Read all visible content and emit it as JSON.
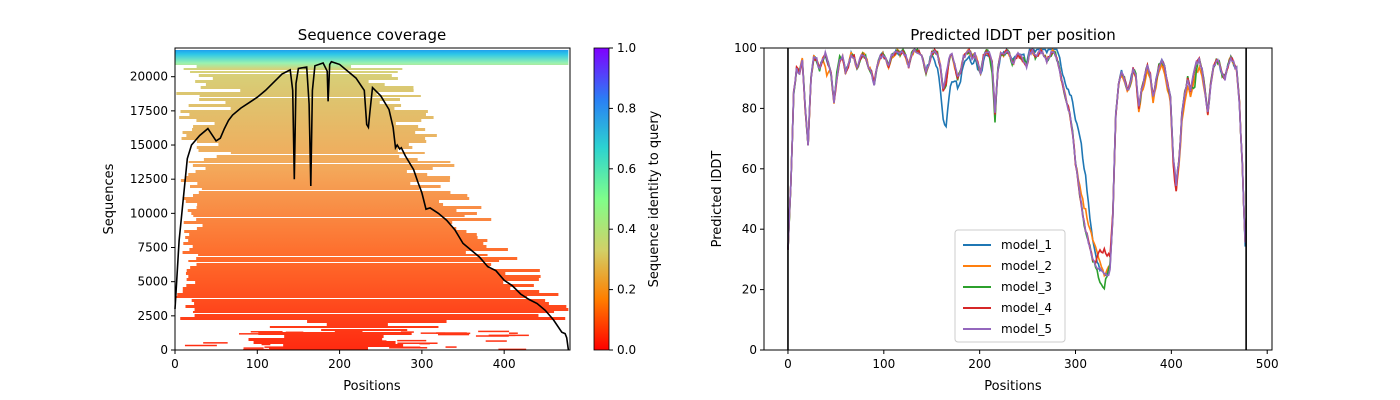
{
  "chart_data": [
    {
      "type": "heatmap",
      "title": "Sequence coverage",
      "xlabel": "Positions",
      "ylabel": "Sequences",
      "xlim": [
        0,
        480
      ],
      "ylim": [
        0,
        22100
      ],
      "xticks": [
        0,
        100,
        200,
        300,
        400
      ],
      "yticks": [
        0,
        2500,
        5000,
        7500,
        10000,
        12500,
        15000,
        17500,
        20000
      ],
      "colorbar": {
        "label": "Sequence identity to query",
        "range": [
          0.0,
          1.0
        ],
        "ticks": [
          "0.0",
          "0.2",
          "0.4",
          "0.6",
          "0.8",
          "1.0"
        ],
        "colormap": "rainbow_r"
      },
      "coverage_line": {
        "x": [
          0,
          5,
          10,
          15,
          20,
          30,
          40,
          50,
          55,
          60,
          65,
          70,
          80,
          90,
          100,
          110,
          120,
          130,
          140,
          143,
          145,
          147,
          150,
          160,
          163,
          165,
          167,
          170,
          180,
          185,
          186,
          188,
          190,
          200,
          210,
          220,
          230,
          233,
          235,
          237,
          240,
          250,
          260,
          265,
          268,
          270,
          273,
          275,
          280,
          290,
          295,
          300,
          305,
          310,
          320,
          330,
          340,
          350,
          360,
          370,
          380,
          390,
          400,
          410,
          420,
          430,
          440,
          450,
          460,
          470,
          474,
          476,
          478
        ],
        "y": [
          3000,
          8000,
          11000,
          14000,
          15000,
          15700,
          16200,
          15300,
          15500,
          16200,
          16800,
          17200,
          17700,
          18100,
          18500,
          19000,
          19600,
          20200,
          20500,
          19000,
          12500,
          19500,
          20600,
          20700,
          18000,
          12000,
          19000,
          20800,
          21000,
          20400,
          18200,
          20900,
          21100,
          20900,
          20400,
          19900,
          19000,
          16500,
          16300,
          17500,
          19200,
          18600,
          17600,
          16300,
          14800,
          15000,
          14700,
          14800,
          14200,
          13200,
          12300,
          11500,
          10300,
          10400,
          10000,
          9500,
          8800,
          7800,
          7300,
          6800,
          6100,
          5800,
          5100,
          4700,
          4100,
          3700,
          3400,
          2900,
          2200,
          1300,
          1200,
          900,
          0
        ],
        "color": "#000000"
      }
    },
    {
      "type": "line",
      "title": "Predicted lDDT per position",
      "xlabel": "Positions",
      "ylabel": "Predicted lDDT",
      "xlim": [
        -25,
        505
      ],
      "ylim": [
        0,
        100
      ],
      "xticks": [
        0,
        100,
        200,
        300,
        400,
        500
      ],
      "yticks": [
        0,
        20,
        40,
        60,
        80,
        100
      ],
      "vlines": [
        0,
        478
      ],
      "legend_position": "lower-center",
      "series": [
        {
          "name": "model_1",
          "color": "#1f77b4"
        },
        {
          "name": "model_2",
          "color": "#ff7f0e"
        },
        {
          "name": "model_3",
          "color": "#2ca02c"
        },
        {
          "name": "model_4",
          "color": "#d62728"
        },
        {
          "name": "model_5",
          "color": "#9467bd"
        }
      ],
      "base_profile": {
        "x": [
          0,
          3,
          6,
          9,
          12,
          15,
          18,
          21,
          24,
          27,
          30,
          33,
          36,
          39,
          42,
          45,
          48,
          51,
          54,
          57,
          60,
          63,
          66,
          69,
          72,
          75,
          78,
          81,
          84,
          87,
          90,
          93,
          96,
          99,
          102,
          105,
          108,
          111,
          114,
          117,
          120,
          123,
          126,
          129,
          132,
          135,
          138,
          141,
          144,
          147,
          150,
          153,
          156,
          159,
          162,
          165,
          168,
          171,
          174,
          177,
          180,
          183,
          186,
          189,
          192,
          195,
          198,
          201,
          204,
          207,
          210,
          213,
          216,
          219,
          222,
          225,
          228,
          231,
          234,
          237,
          240,
          243,
          246,
          249,
          252,
          255,
          258,
          261,
          264,
          267,
          270,
          273,
          276,
          279,
          282,
          285,
          288,
          291,
          294,
          297,
          300,
          303,
          306,
          309,
          312,
          315,
          318,
          321,
          324,
          327,
          330,
          333,
          336,
          339,
          342,
          345,
          348,
          351,
          354,
          357,
          360,
          363,
          366,
          369,
          372,
          375,
          378,
          381,
          384,
          387,
          390,
          393,
          396,
          399,
          402,
          405,
          408,
          411,
          414,
          417,
          420,
          423,
          426,
          429,
          432,
          435,
          438,
          441,
          444,
          447,
          450,
          453,
          456,
          459,
          462,
          465,
          468,
          471,
          474,
          477
        ],
        "y": [
          34,
          55,
          85,
          93,
          92,
          96,
          80,
          68,
          90,
          97,
          96,
          93,
          96,
          98,
          95,
          91,
          82,
          90,
          96,
          97,
          92,
          94,
          98,
          97,
          93,
          96,
          98,
          97,
          94,
          92,
          88,
          94,
          97,
          98,
          96,
          94,
          97,
          98,
          99,
          98,
          99,
          97,
          94,
          98,
          99,
          99,
          98,
          96,
          92,
          95,
          98,
          99,
          98,
          94,
          86,
          88,
          96,
          98,
          94,
          90,
          92,
          97,
          98,
          99,
          97,
          98,
          95,
          92,
          97,
          99,
          98,
          95,
          78,
          93,
          98,
          98,
          99,
          98,
          95,
          96,
          98,
          97,
          96,
          94,
          98,
          99,
          97,
          98,
          99,
          98,
          96,
          97,
          99,
          98,
          95,
          90,
          86,
          82,
          78,
          72,
          62,
          55,
          48,
          42,
          38,
          34,
          30,
          28,
          27,
          26,
          25,
          26,
          28,
          45,
          78,
          88,
          92,
          90,
          86,
          88,
          93,
          91,
          80,
          86,
          90,
          95,
          91,
          84,
          89,
          94,
          96,
          94,
          88,
          84,
          64,
          55,
          63,
          78,
          85,
          90,
          86,
          91,
          95,
          96,
          93,
          86,
          78,
          88,
          94,
          96,
          95,
          91,
          90,
          94,
          97,
          95,
          93,
          82,
          62,
          35
        ]
      },
      "model_offsets": {
        "model_1": {
          "x": [
            150,
            160,
            165,
            170,
            175,
            290,
            295,
            300,
            305,
            310,
            315,
            320,
            325
          ],
          "dy": [
            0,
            -8,
            -14,
            -10,
            -3,
            4,
            8,
            14,
            20,
            18,
            10,
            4,
            0
          ]
        },
        "model_2": {
          "x": [
            36,
            40,
            44,
            300,
            310,
            320,
            330,
            432,
            436
          ],
          "dy": [
            0,
            -6,
            0,
            0,
            6,
            6,
            0,
            -3,
            0
          ]
        },
        "model_3": {
          "x": [
            48,
            52,
            56,
            210,
            214,
            218,
            322,
            326,
            330,
            334,
            420,
            424,
            428
          ],
          "dy": [
            0,
            2,
            0,
            0,
            -4,
            0,
            0,
            -5,
            -4,
            0,
            0,
            -6,
            0
          ]
        },
        "model_4": {
          "x": [
            320,
            325,
            330,
            335,
            340,
            400,
            404,
            408
          ],
          "dy": [
            0,
            6,
            8,
            4,
            0,
            0,
            -4,
            0
          ]
        },
        "model_5": {
          "x": [
            160,
            165,
            170,
            330,
            335,
            340
          ],
          "dy": [
            0,
            3,
            0,
            0,
            -2,
            0
          ]
        }
      }
    }
  ]
}
